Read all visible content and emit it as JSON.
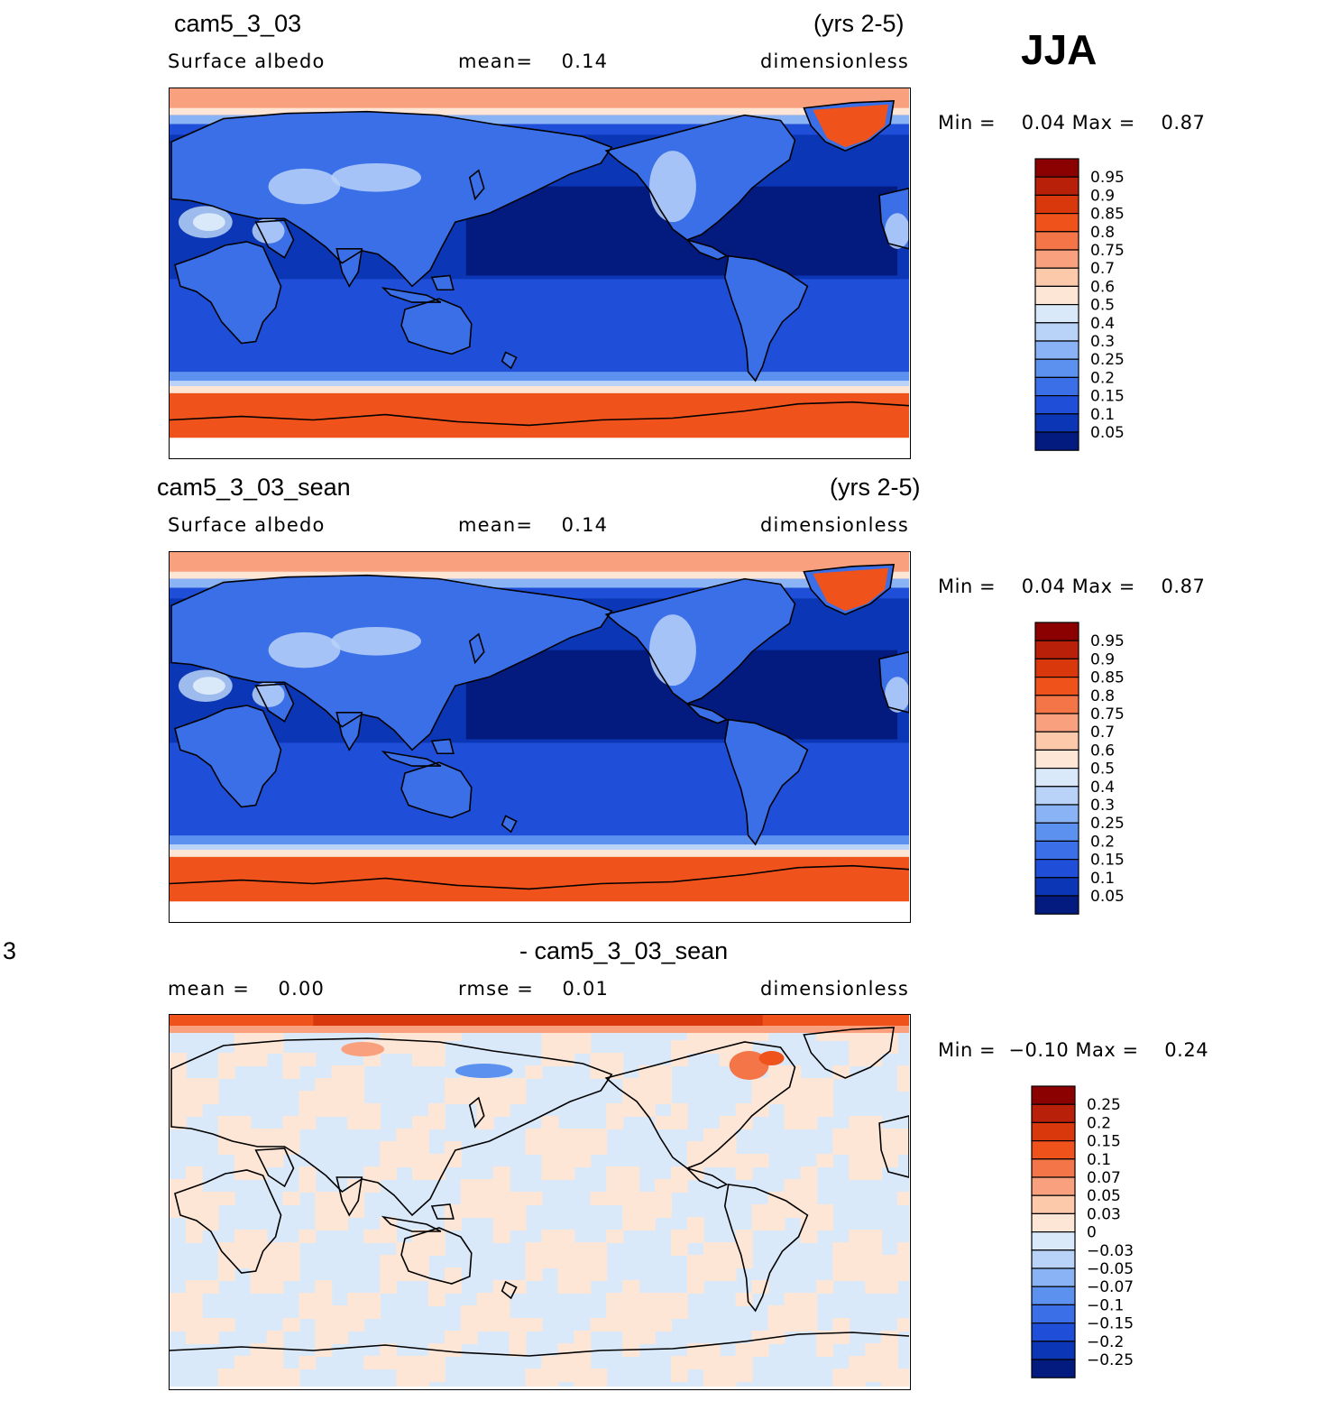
{
  "season": "JJA",
  "panels": [
    {
      "case_name": "cam5_3_03",
      "years": "(yrs 2-5)",
      "left_label": "Surface albedo",
      "mid_label": "mean=    0.14",
      "units": "dimensionless",
      "minmax": "Min =    0.04 Max =    0.87",
      "colorbar": {
        "levels": [
          "0.95",
          "0.9",
          "0.85",
          "0.8",
          "0.75",
          "0.7",
          "0.6",
          "0.5",
          "0.4",
          "0.3",
          "0.25",
          "0.2",
          "0.15",
          "0.1",
          "0.05"
        ],
        "colors": [
          "#8b0000",
          "#b8200a",
          "#d8380b",
          "#f0521c",
          "#f47548",
          "#f9a17e",
          "#fcc9aa",
          "#fde6d5",
          "#d9e9fa",
          "#b8d2f8",
          "#8ab3f6",
          "#5d91f0",
          "#3a6fe8",
          "#1f4fd8",
          "#0b36b5",
          "#031a7e"
        ]
      },
      "map_kind": "albedo"
    },
    {
      "case_name": "cam5_3_03_sean",
      "years": "(yrs 2-5)",
      "left_label": "Surface albedo",
      "mid_label": "mean=    0.14",
      "units": "dimensionless",
      "minmax": "Min =    0.04 Max =    0.87",
      "colorbar": {
        "levels": [
          "0.95",
          "0.9",
          "0.85",
          "0.8",
          "0.75",
          "0.7",
          "0.6",
          "0.5",
          "0.4",
          "0.3",
          "0.25",
          "0.2",
          "0.15",
          "0.1",
          "0.05"
        ],
        "colors": [
          "#8b0000",
          "#b8200a",
          "#d8380b",
          "#f0521c",
          "#f47548",
          "#f9a17e",
          "#fcc9aa",
          "#fde6d5",
          "#d9e9fa",
          "#b8d2f8",
          "#8ab3f6",
          "#5d91f0",
          "#3a6fe8",
          "#1f4fd8",
          "#0b36b5",
          "#031a7e"
        ]
      },
      "map_kind": "albedo"
    },
    {
      "case_name": "3",
      "diff_title": "- cam5_3_03_sean",
      "left_label": "mean =    0.00",
      "mid_label": "rmse =    0.01",
      "units": "dimensionless",
      "minmax": "Min =  −0.10 Max =    0.24",
      "colorbar": {
        "levels": [
          "0.25",
          "0.2",
          "0.15",
          "0.1",
          "0.07",
          "0.05",
          "0.03",
          "0",
          "−0.03",
          "−0.05",
          "−0.07",
          "−0.1",
          "−0.15",
          "−0.2",
          "−0.25"
        ],
        "colors": [
          "#8b0000",
          "#b8200a",
          "#d8380b",
          "#f0521c",
          "#f47548",
          "#f9a17e",
          "#fcc9aa",
          "#fde6d5",
          "#d9e9fa",
          "#b8d2f8",
          "#8ab3f6",
          "#5d91f0",
          "#3a6fe8",
          "#1f4fd8",
          "#0b36b5",
          "#031a7e"
        ]
      },
      "map_kind": "diff"
    }
  ],
  "chart_data": [
    {
      "type": "heatmap",
      "title": "cam5_3_03",
      "subtitle": "(yrs 2-5)",
      "variable": "Surface albedo",
      "units": "dimensionless",
      "mean": 0.14,
      "min": 0.04,
      "max": 0.87,
      "contour_levels": [
        0.05,
        0.1,
        0.15,
        0.2,
        0.25,
        0.3,
        0.4,
        0.5,
        0.6,
        0.7,
        0.75,
        0.8,
        0.85,
        0.9,
        0.95
      ]
    },
    {
      "type": "heatmap",
      "title": "cam5_3_03_sean",
      "subtitle": "(yrs 2-5)",
      "variable": "Surface albedo",
      "units": "dimensionless",
      "mean": 0.14,
      "min": 0.04,
      "max": 0.87,
      "contour_levels": [
        0.05,
        0.1,
        0.15,
        0.2,
        0.25,
        0.3,
        0.4,
        0.5,
        0.6,
        0.7,
        0.75,
        0.8,
        0.85,
        0.9,
        0.95
      ]
    },
    {
      "type": "heatmap",
      "title": "- cam5_3_03_sean",
      "units": "dimensionless",
      "mean": 0.0,
      "rmse": 0.01,
      "min": -0.1,
      "max": 0.24,
      "contour_levels": [
        -0.25,
        -0.2,
        -0.15,
        -0.1,
        -0.07,
        -0.05,
        -0.03,
        0,
        0.03,
        0.05,
        0.07,
        0.1,
        0.15,
        0.2,
        0.25
      ]
    }
  ]
}
